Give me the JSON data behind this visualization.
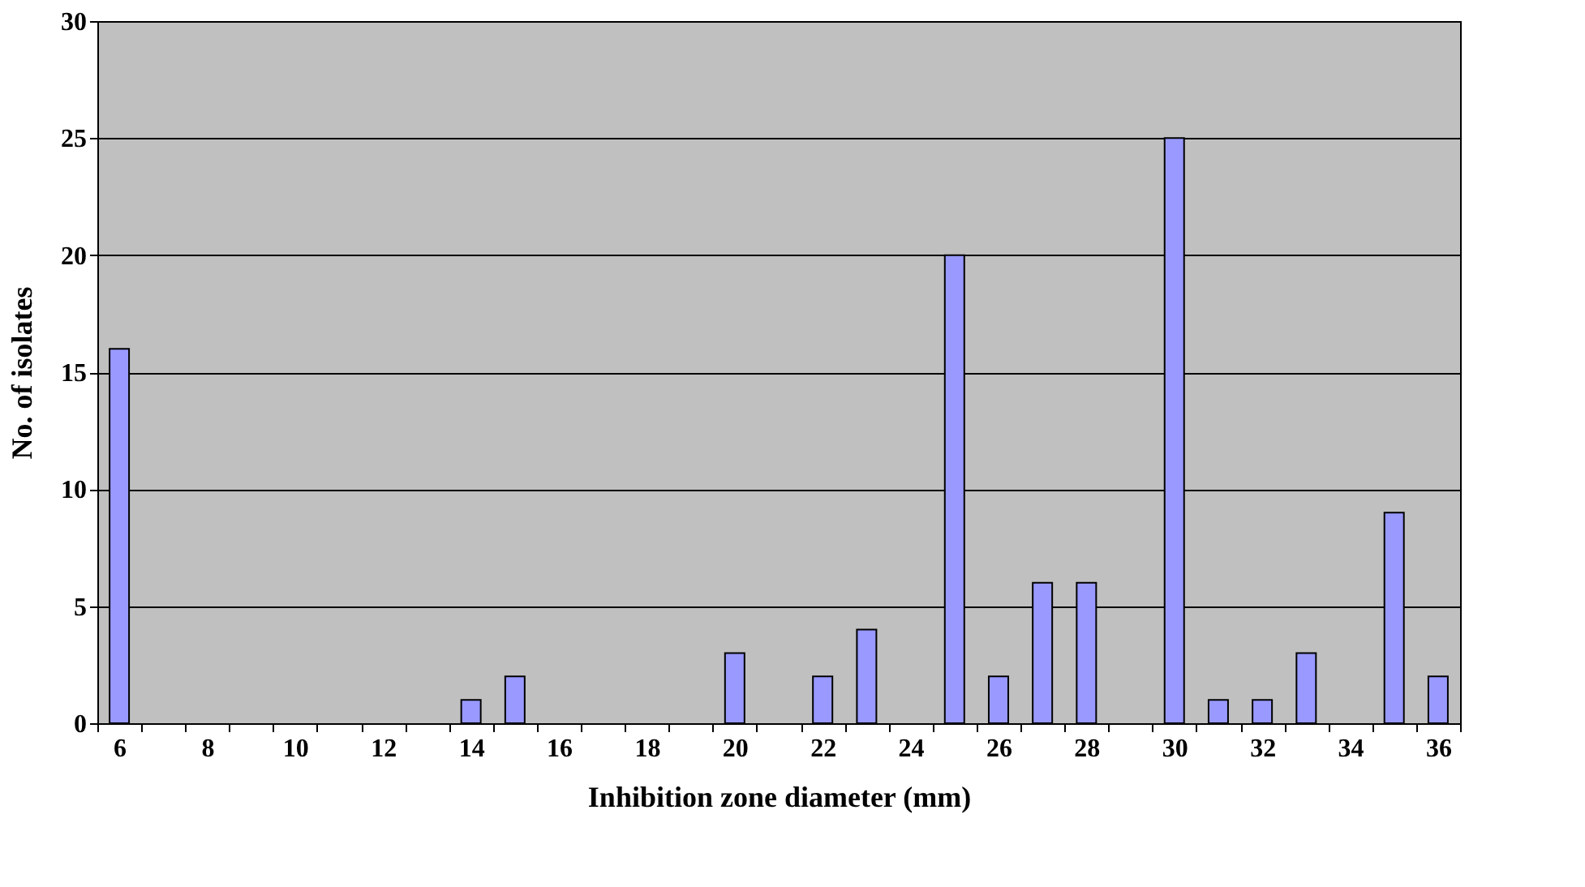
{
  "chart_data": {
    "type": "bar",
    "xlabel": "Inhibition zone diameter (mm)",
    "ylabel": "No. of isolates",
    "categories": [
      "6",
      null,
      "8",
      null,
      "10",
      null,
      "12",
      null,
      "14",
      null,
      "16",
      null,
      "18",
      null,
      "20",
      null,
      "22",
      null,
      "24",
      null,
      "26",
      null,
      "28",
      null,
      "30",
      null,
      "32",
      null,
      "34",
      null,
      "36"
    ],
    "values": [
      16,
      0,
      0,
      0,
      0,
      0,
      0,
      0,
      1,
      2,
      0,
      0,
      0,
      0,
      3,
      0,
      2,
      4,
      0,
      20,
      2,
      6,
      6,
      0,
      25,
      1,
      1,
      3,
      0,
      9,
      2
    ],
    "color": "#9999ff",
    "ylim": [
      0,
      30
    ],
    "yticks": [
      0,
      5,
      10,
      15,
      20,
      25,
      30
    ],
    "grid": "y"
  }
}
